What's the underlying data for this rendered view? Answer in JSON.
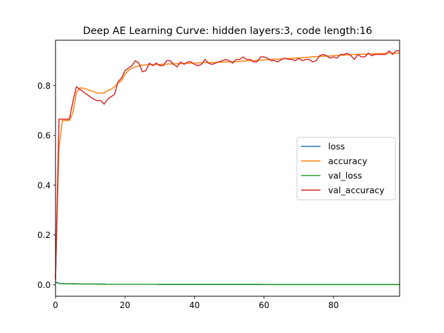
{
  "chart_data": {
    "type": "line",
    "title": "Deep AE Learning Curve: hidden layers:3, code length:16",
    "xlabel": "",
    "ylabel": "",
    "xlim": [
      0,
      99
    ],
    "ylim": [
      -0.046,
      0.982
    ],
    "x_ticks": [
      0,
      20,
      40,
      60,
      80
    ],
    "y_ticks": [
      0.0,
      0.2,
      0.4,
      0.6,
      0.8
    ],
    "x_tick_labels": [
      "0",
      "20",
      "40",
      "60",
      "80"
    ],
    "y_tick_labels": [
      "0.0",
      "0.2",
      "0.4",
      "0.6",
      "0.8"
    ],
    "grid": false,
    "legend_position": "center-right",
    "series": [
      {
        "name": "loss",
        "color": "#1f77b4",
        "values": [
          0.012,
          0.006,
          0.005,
          0.005,
          0.004,
          0.004,
          0.004,
          0.003,
          0.003,
          0.003,
          0.003,
          0.003,
          0.003,
          0.003,
          0.003,
          0.002,
          0.002,
          0.002,
          0.002,
          0.002,
          0.002,
          0.002,
          0.002,
          0.002,
          0.002,
          0.002,
          0.002,
          0.002,
          0.002,
          0.002,
          0.001,
          0.001,
          0.001,
          0.001,
          0.001,
          0.001,
          0.001,
          0.001,
          0.001,
          0.001,
          0.001,
          0.001,
          0.001,
          0.001,
          0.001,
          0.001,
          0.001,
          0.001,
          0.001,
          0.001,
          0.001,
          0.001,
          0.001,
          0.001,
          0.001,
          0.001,
          0.001,
          0.001,
          0.001,
          0.001,
          0.001,
          0.001,
          0.001,
          0.001,
          0.001,
          0.001,
          0.001,
          0.001,
          0.001,
          0.001,
          0.001,
          0.001,
          0.001,
          0.001,
          0.001,
          0.001,
          0.001,
          0.001,
          0.001,
          0.001,
          0.001,
          0.001,
          0.001,
          0.001,
          0.001,
          0.001,
          0.001,
          0.001,
          0.001,
          0.001,
          0.001,
          0.001,
          0.001,
          0.001,
          0.001,
          0.001,
          0.001,
          0.001,
          0.001,
          0.001
        ]
      },
      {
        "name": "accuracy",
        "color": "#ff7f0e",
        "values": [
          0.03,
          0.55,
          0.66,
          0.66,
          0.66,
          0.69,
          0.77,
          0.79,
          0.79,
          0.785,
          0.78,
          0.775,
          0.77,
          0.77,
          0.77,
          0.78,
          0.785,
          0.795,
          0.81,
          0.82,
          0.845,
          0.86,
          0.87,
          0.875,
          0.88,
          0.882,
          0.883,
          0.884,
          0.884,
          0.885,
          0.885,
          0.886,
          0.886,
          0.887,
          0.887,
          0.888,
          0.888,
          0.889,
          0.889,
          0.89,
          0.89,
          0.891,
          0.891,
          0.892,
          0.892,
          0.893,
          0.893,
          0.894,
          0.894,
          0.895,
          0.895,
          0.896,
          0.896,
          0.897,
          0.898,
          0.899,
          0.9,
          0.9,
          0.901,
          0.902,
          0.903,
          0.904,
          0.905,
          0.906,
          0.906,
          0.907,
          0.908,
          0.909,
          0.91,
          0.91,
          0.911,
          0.912,
          0.913,
          0.914,
          0.915,
          0.916,
          0.917,
          0.918,
          0.918,
          0.919,
          0.92,
          0.921,
          0.922,
          0.922,
          0.923,
          0.924,
          0.925,
          0.925,
          0.926,
          0.926,
          0.927,
          0.927,
          0.928,
          0.928,
          0.929,
          0.929,
          0.93,
          0.93,
          0.93,
          0.931
        ]
      },
      {
        "name": "val_loss",
        "color": "#2ca02c",
        "values": [
          0.01,
          0.005,
          0.004,
          0.004,
          0.004,
          0.003,
          0.003,
          0.003,
          0.003,
          0.003,
          0.003,
          0.003,
          0.002,
          0.002,
          0.002,
          0.002,
          0.002,
          0.002,
          0.002,
          0.002,
          0.002,
          0.002,
          0.002,
          0.002,
          0.002,
          0.002,
          0.002,
          0.002,
          0.002,
          0.002,
          0.002,
          0.002,
          0.002,
          0.002,
          0.002,
          0.002,
          0.002,
          0.002,
          0.002,
          0.002,
          0.002,
          0.002,
          0.002,
          0.002,
          0.002,
          0.002,
          0.002,
          0.002,
          0.002,
          0.002,
          0.002,
          0.002,
          0.002,
          0.002,
          0.002,
          0.002,
          0.002,
          0.002,
          0.002,
          0.002,
          0.001,
          0.001,
          0.001,
          0.001,
          0.001,
          0.001,
          0.001,
          0.001,
          0.001,
          0.001,
          0.001,
          0.001,
          0.001,
          0.001,
          0.001,
          0.001,
          0.001,
          0.001,
          0.001,
          0.001,
          0.001,
          0.001,
          0.001,
          0.001,
          0.001,
          0.001,
          0.001,
          0.001,
          0.001,
          0.001,
          0.001,
          0.001,
          0.001,
          0.001,
          0.001,
          0.001,
          0.001,
          0.001,
          0.001,
          0.001
        ]
      },
      {
        "name": "val_accuracy",
        "color": "#d62728",
        "values": [
          0.02,
          0.665,
          0.665,
          0.665,
          0.665,
          0.735,
          0.795,
          0.785,
          0.775,
          0.765,
          0.755,
          0.745,
          0.74,
          0.74,
          0.725,
          0.745,
          0.755,
          0.765,
          0.815,
          0.83,
          0.86,
          0.87,
          0.88,
          0.9,
          0.89,
          0.855,
          0.86,
          0.89,
          0.88,
          0.89,
          0.88,
          0.88,
          0.9,
          0.9,
          0.885,
          0.875,
          0.895,
          0.885,
          0.895,
          0.895,
          0.885,
          0.88,
          0.885,
          0.905,
          0.89,
          0.885,
          0.89,
          0.895,
          0.9,
          0.905,
          0.9,
          0.89,
          0.905,
          0.905,
          0.915,
          0.905,
          0.905,
          0.895,
          0.895,
          0.915,
          0.915,
          0.91,
          0.9,
          0.9,
          0.895,
          0.905,
          0.91,
          0.905,
          0.905,
          0.9,
          0.91,
          0.9,
          0.905,
          0.905,
          0.895,
          0.9,
          0.92,
          0.925,
          0.92,
          0.91,
          0.915,
          0.91,
          0.925,
          0.925,
          0.93,
          0.92,
          0.905,
          0.925,
          0.915,
          0.915,
          0.93,
          0.92,
          0.925,
          0.925,
          0.925,
          0.925,
          0.94,
          0.925,
          0.94,
          0.94
        ]
      }
    ]
  }
}
